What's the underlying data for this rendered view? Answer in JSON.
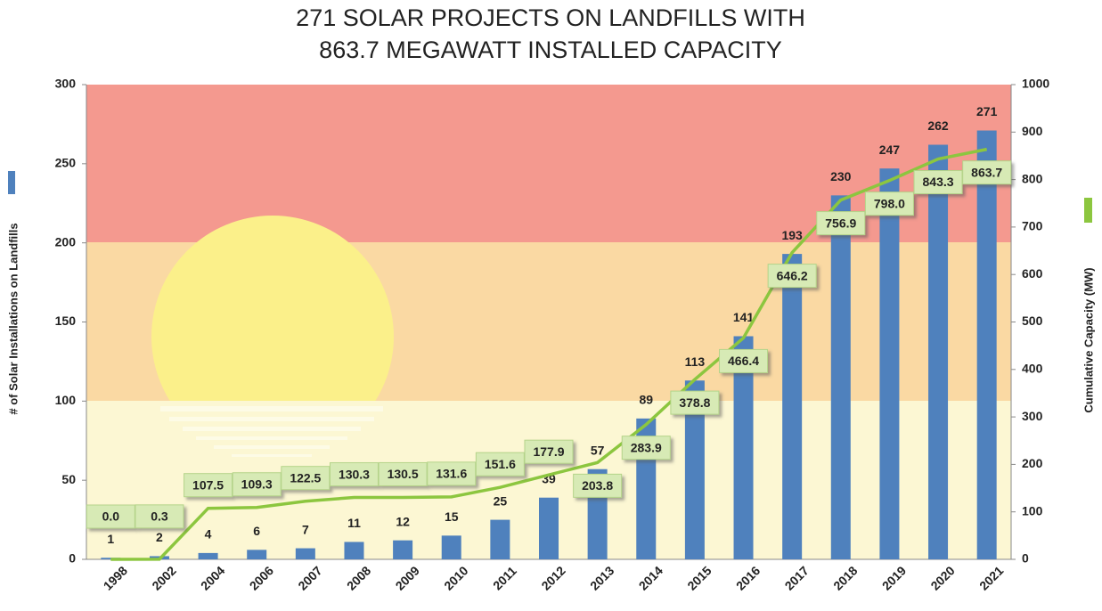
{
  "chart_data": {
    "type": "bar-line",
    "title": [
      "271 SOLAR PROJECTS ON LANDFILLS WITH",
      "863.7 MEGAWATT INSTALLED CAPACITY"
    ],
    "categories": [
      "1998",
      "2002",
      "2004",
      "2006",
      "2007",
      "2008",
      "2009",
      "2010",
      "2011",
      "2012",
      "2013",
      "2014",
      "2015",
      "2016",
      "2017",
      "2018",
      "2019",
      "2020",
      "2021"
    ],
    "series": [
      {
        "name": "# of Solar Installations on Landfills",
        "color": "#4f81bd",
        "type": "bar",
        "values": [
          1,
          2,
          4,
          6,
          7,
          11,
          12,
          15,
          25,
          39,
          57,
          89,
          113,
          141,
          193,
          230,
          247,
          262,
          271
        ]
      },
      {
        "name": "Cumulative Capacity (MW)",
        "color": "#8cc63f",
        "type": "line",
        "axis": "y2",
        "values": [
          0.0,
          0.3,
          107.5,
          109.3,
          122.5,
          130.3,
          130.5,
          131.6,
          151.6,
          177.9,
          203.8,
          283.9,
          378.8,
          466.4,
          646.2,
          756.9,
          798.0,
          843.3,
          863.7
        ],
        "value_labels": [
          "0.0",
          "0.3",
          "107.5",
          "109.3",
          "122.5",
          "130.3",
          "130.5",
          "131.6",
          "151.6",
          "177.9",
          "203.8",
          "283.9",
          "378.8",
          "466.4",
          "646.2",
          "756.9",
          "798.0",
          "843.3",
          "863.7"
        ]
      }
    ],
    "ylim": [
      0,
      300
    ],
    "yticks": [
      0,
      50,
      100,
      150,
      200,
      250,
      300
    ],
    "y2lim": [
      0,
      1000
    ],
    "y2ticks": [
      0,
      100,
      200,
      300,
      400,
      500,
      600,
      700,
      800,
      900,
      1000
    ]
  }
}
